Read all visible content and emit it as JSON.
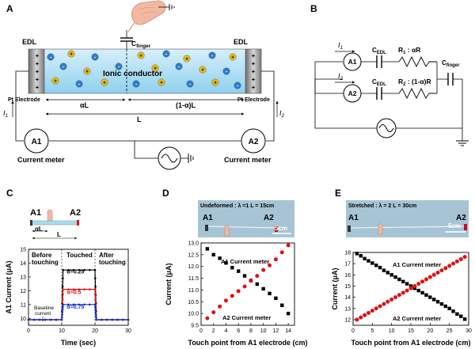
{
  "panels": {
    "A": {
      "label": "A",
      "edl_left": "EDL",
      "edl_right": "EDL",
      "c_finger": "C",
      "c_finger_sub": "finger",
      "ionic": "Ionic conductor",
      "pt_left": "Pt Electrode",
      "pt_right": "Pt Electrode",
      "alpha_l": "αL",
      "one_minus_alpha_l": "(1-α)L",
      "l": "L",
      "i1": "I",
      "i1_sub": "1",
      "i2": "I",
      "i2_sub": "2",
      "a1": "A1",
      "a2": "A2",
      "meter_left": "Current meter",
      "meter_right": "Current meter"
    },
    "B": {
      "label": "B",
      "i1": "I",
      "i1_sub": "1",
      "i2": "I",
      "i2_sub": "2",
      "a1": "A1",
      "a2": "A2",
      "cedl1": "C",
      "cedl1_sub": "EDL",
      "cedl2": "C",
      "cedl2_sub": "EDL",
      "r1": "R",
      "r1_sub": "1",
      "r1_val": " : αR",
      "r2": "R",
      "r2_sub": "2",
      "r2_val": " : (1-α)R",
      "cfinger": "C",
      "cfinger_sub": "finger"
    },
    "C": {
      "label": "C",
      "a1": "A1",
      "a2": "A2",
      "alpha_l": "αL",
      "l": "L",
      "before": [
        "Before",
        "touching"
      ],
      "touched": "Touched",
      "after": [
        "After",
        "touching"
      ],
      "baseline": [
        "Baseline",
        "current"
      ],
      "ylabel": "A1 Current (μA)",
      "xlabel": "Time (sec)",
      "series_labels": [
        "α=0.25",
        "α=0.5",
        "α=0.75"
      ]
    },
    "D": {
      "label": "D",
      "caption": "Undeformed : λ =1  L = 15cm",
      "a1": "A1",
      "a2": "A2",
      "scale": "5cm",
      "ylabel": "Current (μA)",
      "xlabel": "Touch point from A1 electrode (cm)",
      "s1": "A1 Current meter",
      "s2": "A2 Current meter"
    },
    "E": {
      "label": "E",
      "caption": "Stretched : λ = 2   L = 30cm",
      "a1": "A1",
      "a2": "A2",
      "scale": "5cm",
      "ylabel": "Current (μA)",
      "xlabel": "Touch point from A1 electrode (cm)",
      "s1": "A1 Current meter",
      "s2": "A2 Current meter"
    }
  },
  "chart_data": [
    {
      "type": "line",
      "panel": "C",
      "ylabel": "A1 Current (μA)",
      "xlabel": "Time (sec)",
      "xlim": [
        0,
        30
      ],
      "ylim": [
        9.5,
        15
      ],
      "xticks": [
        0,
        10,
        20,
        30
      ],
      "yticks": [
        10,
        11,
        12,
        13,
        14,
        15
      ],
      "series": [
        {
          "name": "α=0.25",
          "color": "#000000",
          "x": [
            0,
            10,
            10.4,
            20,
            20.4,
            30
          ],
          "y": [
            9.9,
            9.9,
            13.5,
            13.5,
            9.9,
            9.9
          ]
        },
        {
          "name": "α=0.5",
          "color": "#e01010",
          "x": [
            0,
            10,
            10.4,
            20,
            20.4,
            30
          ],
          "y": [
            9.9,
            9.9,
            12.1,
            12.1,
            9.9,
            9.9
          ]
        },
        {
          "name": "α=0.75",
          "color": "#1030d0",
          "x": [
            0,
            10,
            10.4,
            20,
            20.4,
            30
          ],
          "y": [
            9.9,
            9.9,
            11.0,
            11.0,
            9.9,
            9.9
          ]
        }
      ]
    },
    {
      "type": "scatter",
      "panel": "D",
      "xlabel": "Touch point from A1 electrode (cm)",
      "ylabel": "Current (μA)",
      "xlim": [
        0,
        15
      ],
      "ylim": [
        9.5,
        13.0
      ],
      "xticks": [
        0,
        2,
        4,
        6,
        8,
        10,
        12,
        14
      ],
      "yticks": [
        9.5,
        10.0,
        10.5,
        11.0,
        11.5,
        12.0,
        12.5,
        13.0
      ],
      "x": [
        1,
        2,
        3,
        4,
        5,
        6,
        7,
        8,
        9,
        10,
        11,
        12,
        13,
        14
      ],
      "series": [
        {
          "name": "A1 Current meter",
          "color": "#000000",
          "marker": "square",
          "values": [
            12.75,
            12.5,
            12.35,
            12.15,
            11.95,
            11.8,
            11.6,
            11.4,
            11.25,
            11.05,
            10.85,
            10.65,
            10.35,
            10.0
          ]
        },
        {
          "name": "A2 Current meter",
          "color": "#e01010",
          "marker": "circle",
          "values": [
            9.8,
            10.05,
            10.3,
            10.55,
            10.75,
            10.95,
            11.15,
            11.4,
            11.6,
            11.85,
            12.05,
            12.3,
            12.6,
            12.9
          ]
        }
      ]
    },
    {
      "type": "scatter",
      "panel": "E",
      "xlabel": "Touch point from A1 electrode (cm)",
      "ylabel": "Current (μA)",
      "xlim": [
        0,
        30
      ],
      "ylim": [
        11.5,
        18
      ],
      "xticks": [
        0,
        5,
        10,
        15,
        20,
        25,
        30
      ],
      "yticks": [
        12,
        13,
        14,
        15,
        16,
        17,
        18
      ],
      "x": [
        1,
        2,
        3,
        4,
        5,
        6,
        7,
        8,
        9,
        10,
        11,
        12,
        13,
        14,
        15,
        16,
        17,
        18,
        19,
        20,
        21,
        22,
        23,
        24,
        25,
        26,
        27,
        28,
        29
      ],
      "series": [
        {
          "name": "A1 Current meter",
          "color": "#000000",
          "marker": "square",
          "values": [
            17.9,
            17.7,
            17.45,
            17.25,
            17.05,
            16.85,
            16.65,
            16.4,
            16.2,
            16.0,
            15.8,
            15.6,
            15.4,
            15.2,
            15.0,
            14.8,
            14.6,
            14.4,
            14.2,
            14.0,
            13.8,
            13.6,
            13.4,
            13.2,
            13.0,
            12.75,
            12.5,
            12.3,
            12.05
          ]
        },
        {
          "name": "A2 Current meter",
          "color": "#e01010",
          "marker": "circle",
          "values": [
            12.0,
            12.2,
            12.4,
            12.6,
            12.8,
            13.0,
            13.2,
            13.4,
            13.6,
            13.8,
            14.0,
            14.2,
            14.4,
            14.6,
            14.8,
            15.0,
            15.2,
            15.4,
            15.6,
            15.8,
            16.0,
            16.2,
            16.4,
            16.6,
            16.8,
            17.0,
            17.2,
            17.4,
            17.6
          ]
        }
      ]
    }
  ]
}
